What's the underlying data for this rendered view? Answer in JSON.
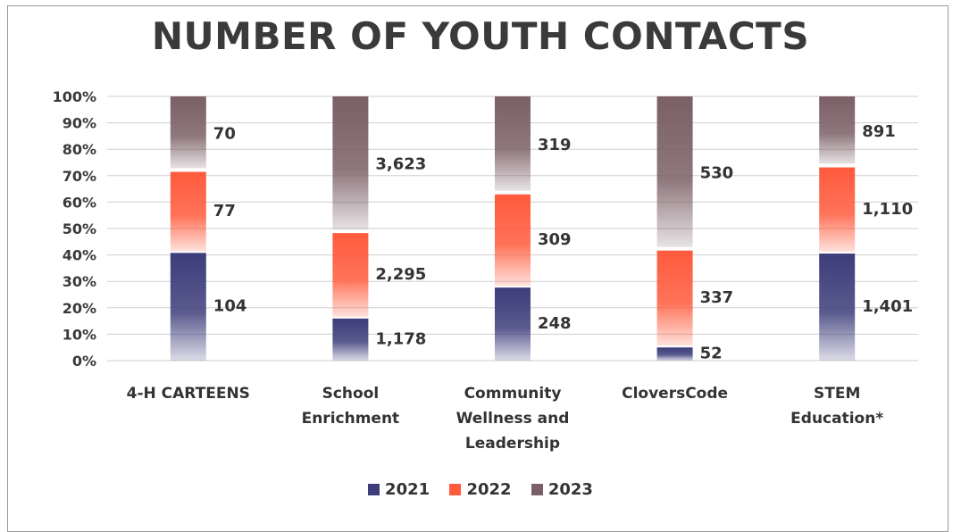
{
  "chart_data": {
    "type": "bar",
    "stacked": "percent",
    "title": "NUMBER OF YOUTH CONTACTS",
    "categories": [
      "4-H CARTEENS",
      "School Enrichment",
      "Community Wellness and Leadership",
      "CloversCode",
      "STEM Education*"
    ],
    "category_lines": [
      [
        "4-H CARTEENS"
      ],
      [
        "School",
        "Enrichment"
      ],
      [
        "Community",
        "Wellness and",
        "Leadership"
      ],
      [
        "CloversCode"
      ],
      [
        "STEM",
        "Education*"
      ]
    ],
    "series": [
      {
        "name": "2021",
        "values": [
          104,
          1178,
          248,
          52,
          1401
        ],
        "labels": [
          "104",
          "1,178",
          "248",
          "52",
          "1,401"
        ],
        "color": "#3c3d7a"
      },
      {
        "name": "2022",
        "values": [
          77,
          2295,
          309,
          337,
          1110
        ],
        "labels": [
          "77",
          "2,295",
          "309",
          "337",
          "1,110"
        ],
        "color": "#ff5a3c"
      },
      {
        "name": "2023",
        "values": [
          70,
          3623,
          319,
          530,
          891
        ],
        "labels": [
          "70",
          "3,623",
          "319",
          "530",
          "891"
        ],
        "color": "#7a5f66"
      }
    ],
    "ylim": [
      0,
      100
    ],
    "yticks": [
      "0%",
      "10%",
      "20%",
      "30%",
      "40%",
      "50%",
      "60%",
      "70%",
      "80%",
      "90%",
      "100%"
    ],
    "grid": true,
    "legend_position": "bottom"
  }
}
